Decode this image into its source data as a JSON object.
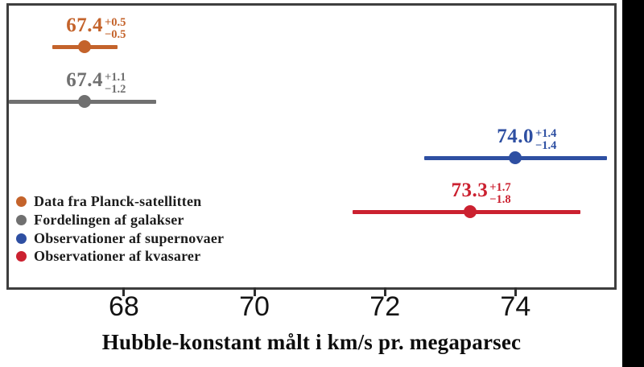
{
  "canvas": {
    "background": "#ffffff",
    "right_bar_color": "#000000",
    "plot_border_color": "#3e3e3e"
  },
  "chart_data": {
    "type": "scatter",
    "subtype": "horizontal-error-bar-dot-plot",
    "title": "",
    "xlabel": "Hubble-konstant målt i km/s pr. megaparsec",
    "ylabel": "",
    "xlim": [
      66.2,
      75.55
    ],
    "xticks": [
      "68",
      "70",
      "72",
      "74"
    ],
    "xtick_values": [
      68,
      70,
      72,
      74
    ],
    "grid": false,
    "legend_position": "lower left",
    "series": [
      {
        "name": "Data fra Planck-satellitten",
        "value": 67.4,
        "err_plus": 0.5,
        "err_minus": 0.5,
        "value_label": "67.4",
        "plus_label": "+0.5",
        "minus_label": "−0.5",
        "color": "#c4632b"
      },
      {
        "name": "Fordelingen af galakser",
        "value": 67.4,
        "err_plus": 1.1,
        "err_minus": 1.2,
        "value_label": "67.4",
        "plus_label": "+1.1",
        "minus_label": "−1.2",
        "color": "#707070"
      },
      {
        "name": "Observationer af supernovaer",
        "value": 74.0,
        "err_plus": 1.4,
        "err_minus": 1.4,
        "value_label": "74.0",
        "plus_label": "+1.4",
        "minus_label": "−1.4",
        "color": "#2e4fa2"
      },
      {
        "name": "Observationer af kvasarer",
        "value": 73.3,
        "err_plus": 1.7,
        "err_minus": 1.8,
        "value_label": "73.3",
        "plus_label": "+1.7",
        "minus_label": "−1.8",
        "color": "#cb2130"
      }
    ],
    "legend": {
      "items": [
        {
          "label": "Data fra Planck-satellitten",
          "color": "#c4632b"
        },
        {
          "label": "Fordelingen af galakser",
          "color": "#707070"
        },
        {
          "label": "Observationer af supernovaer",
          "color": "#2e4fa2"
        },
        {
          "label": "Observationer af kvasarer",
          "color": "#cb2130"
        }
      ]
    }
  }
}
